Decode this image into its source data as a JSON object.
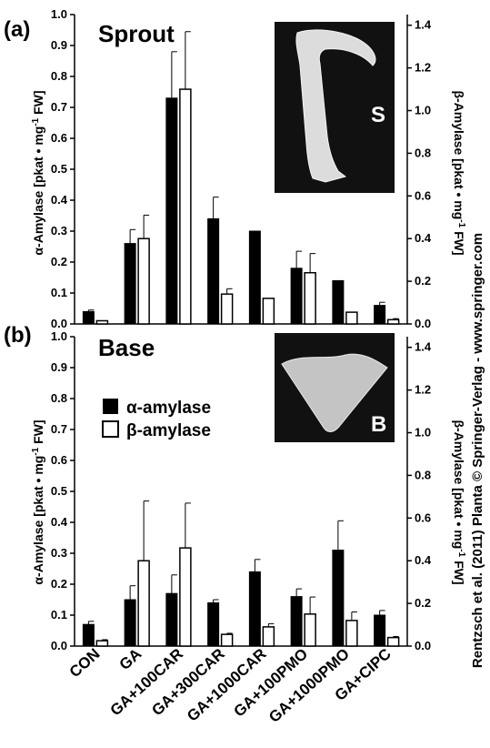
{
  "credit": "Rentzsch et al. (2011) Planta © Springer-Verlag - www.springer.com",
  "colors": {
    "alpha_bar": "#000000",
    "beta_bar": "#ffffff",
    "photo_bg": "#111111"
  },
  "chart_data": [
    {
      "type": "bar",
      "panel_label": "(a)",
      "title": "Sprout",
      "photo_label": "S",
      "ylabel": "α-Amylase [pkat • mg-1 FW]",
      "y2label": "β-Amylase [pkat • mg-1 FW]",
      "ylim": [
        0,
        1.0
      ],
      "y2lim": [
        0,
        1.45
      ],
      "yticks": [
        "0.0",
        "0.1",
        "0.2",
        "0.3",
        "0.4",
        "0.5",
        "0.6",
        "0.7",
        "0.8",
        "0.9",
        "1.0"
      ],
      "y2ticks": [
        "0.0",
        "0.2",
        "0.4",
        "0.6",
        "0.8",
        "1.0",
        "1.2",
        "1.4"
      ],
      "categories": [
        "CON",
        "GA",
        "GA+100CAR",
        "GA+300CAR",
        "GA+1000CAR",
        "GA+100PMO",
        "GA+1000PMO",
        "GA+CIPC"
      ],
      "series": [
        {
          "name": "α-amylase",
          "axis": "left",
          "values": [
            0.04,
            0.26,
            0.73,
            0.34,
            0.3,
            0.18,
            0.14,
            0.06
          ],
          "errors": [
            0.005,
            0.045,
            0.15,
            0.07,
            0,
            0.055,
            0,
            0.01
          ]
        },
        {
          "name": "β-amylase",
          "axis": "right",
          "values": [
            0.015,
            0.4,
            1.1,
            0.14,
            0.12,
            0.24,
            0.055,
            0.02
          ],
          "errors": [
            0,
            0.11,
            0.27,
            0.025,
            0,
            0.09,
            0,
            0.005
          ]
        }
      ]
    },
    {
      "type": "bar",
      "panel_label": "(b)",
      "title": "Base",
      "photo_label": "B",
      "ylabel": "α-Amylase [pkat • mg-1 FW]",
      "y2label": "β-Amylase [pkat • mg-1 FW]",
      "ylim": [
        0,
        1.0
      ],
      "y2lim": [
        0,
        1.45
      ],
      "yticks": [
        "0.0",
        "0.1",
        "0.2",
        "0.3",
        "0.4",
        "0.5",
        "0.6",
        "0.7",
        "0.8",
        "0.9",
        "1.0"
      ],
      "y2ticks": [
        "0.0",
        "0.2",
        "0.4",
        "0.6",
        "0.8",
        "1.0",
        "1.2",
        "1.4"
      ],
      "categories": [
        "CON",
        "GA",
        "GA+100CAR",
        "GA+300CAR",
        "GA+1000CAR",
        "GA+100PMO",
        "GA+1000PMO",
        "GA+CIPC"
      ],
      "legend": {
        "placement": "upper-left",
        "entries": [
          "α-amylase",
          "β-amylase"
        ]
      },
      "series": [
        {
          "name": "α-amylase",
          "axis": "left",
          "values": [
            0.07,
            0.15,
            0.17,
            0.14,
            0.24,
            0.16,
            0.31,
            0.1
          ],
          "errors": [
            0.01,
            0.045,
            0.06,
            0.01,
            0.04,
            0.025,
            0.095,
            0.015
          ]
        },
        {
          "name": "β-amylase",
          "axis": "right",
          "values": [
            0.025,
            0.4,
            0.46,
            0.055,
            0.09,
            0.15,
            0.12,
            0.04
          ],
          "errors": [
            0.005,
            0.28,
            0.21,
            0.005,
            0.015,
            0.08,
            0.04,
            0.005
          ]
        }
      ]
    }
  ]
}
